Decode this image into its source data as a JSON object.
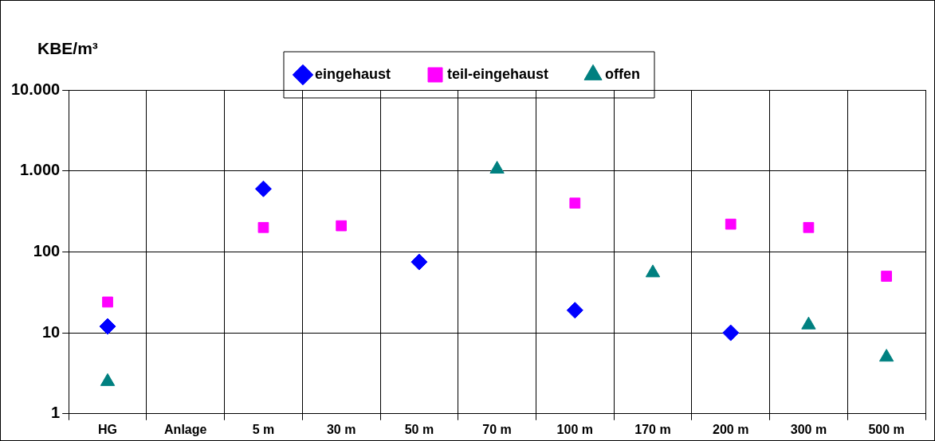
{
  "chart_data": {
    "type": "scatter",
    "ylabel": "KBE/m³",
    "categories": [
      "HG",
      "Anlage",
      "5 m",
      "30 m",
      "50 m",
      "70 m",
      "100 m",
      "170 m",
      "200 m",
      "300 m",
      "500 m"
    ],
    "series": [
      {
        "name": "eingehaust",
        "color": "#0000ff",
        "marker": "diamond",
        "values": [
          12,
          null,
          600,
          null,
          75,
          null,
          19,
          null,
          10,
          null,
          null
        ]
      },
      {
        "name": "teil-eingehaust",
        "color": "#ff00ff",
        "marker": "square",
        "values": [
          24,
          null,
          200,
          210,
          null,
          null,
          400,
          null,
          220,
          200,
          50
        ]
      },
      {
        "name": "offen",
        "color": "#008080",
        "marker": "triangle",
        "values": [
          2.5,
          null,
          null,
          null,
          null,
          1050,
          null,
          55,
          null,
          12.5,
          5
        ]
      }
    ],
    "log": "y",
    "ylim": [
      1,
      10000
    ],
    "yticks": [
      1,
      10,
      100,
      {
        "value": 1000,
        "label": "1.000"
      },
      {
        "value": 10000,
        "label": "10.000"
      }
    ],
    "grid": true,
    "legend": "top"
  }
}
